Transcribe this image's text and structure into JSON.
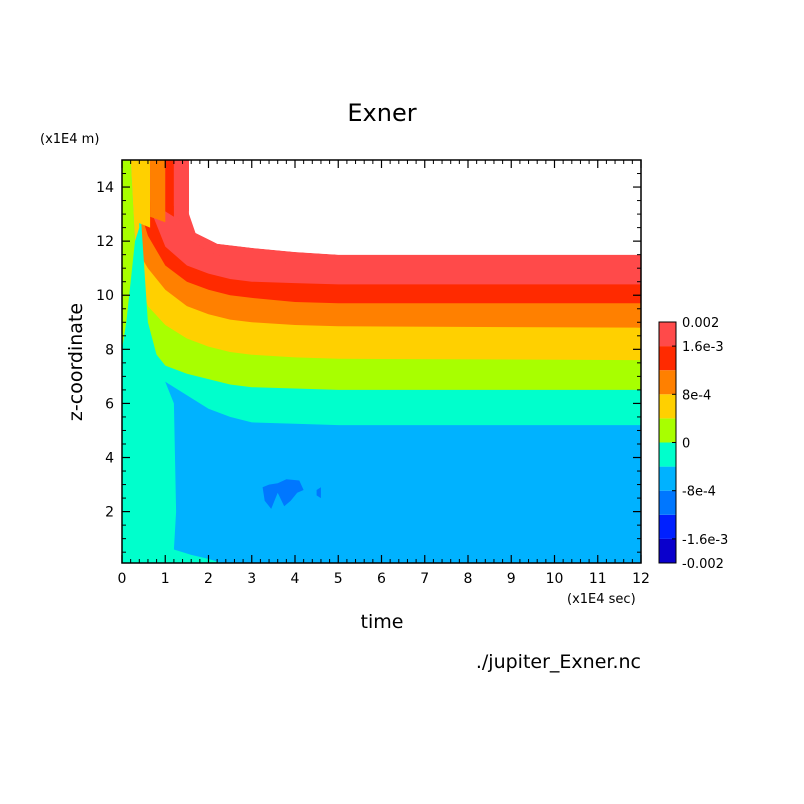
{
  "chart_data": {
    "type": "heatmap",
    "subtype": "filled-contour",
    "title": "Exner",
    "xlabel": "time",
    "ylabel": "z-coordinate",
    "x_unit": "(x1E4 sec)",
    "y_unit": "(x1E4 m)",
    "xlim": [
      0,
      12
    ],
    "ylim": [
      0.1,
      15
    ],
    "x_ticks": [
      "0",
      "1",
      "2",
      "3",
      "4",
      "5",
      "6",
      "7",
      "8",
      "9",
      "10",
      "11",
      "12"
    ],
    "y_ticks": [
      "2",
      "4",
      "6",
      "8",
      "10",
      "12",
      "14"
    ],
    "source_file": "./jupiter_Exner.nc",
    "colorbar": {
      "levels": [
        -0.002,
        -0.0016,
        -0.0012,
        -0.0008,
        -0.0004,
        0,
        0.0004,
        0.0008,
        0.0012,
        0.0016,
        0.002
      ],
      "colors": [
        "#0a00cc",
        "#0020ff",
        "#0077ff",
        "#00b2ff",
        "#00ffcc",
        "#a8ff00",
        "#ffd000",
        "#ff8000",
        "#ff2a00",
        "#ff4a4a"
      ],
      "tick_labels": [
        "0.002",
        "1.6e-3",
        "8e-4",
        "0",
        "-8e-4",
        "-1.6e-3",
        "-0.002"
      ],
      "tick_values": [
        0.002,
        0.0016,
        0.0008,
        0,
        -0.0008,
        -0.0016,
        -0.002
      ]
    },
    "steady_state_band_tops": [
      {
        "band": "-8e-4 to -4e-4",
        "z_top": 5.2
      },
      {
        "band": "-4e-4 to 0",
        "z_top": 6.5
      },
      {
        "band": "0 to 4e-4",
        "z_top": 7.6
      },
      {
        "band": "4e-4 to 8e-4",
        "z_top": 8.8
      },
      {
        "band": "8e-4 to 1.2e-3",
        "z_top": 9.7
      },
      {
        "band": "1.2e-3 to 1.6e-3",
        "z_top": 10.4
      },
      {
        "band": "1.6e-3 to 2e-3",
        "z_top": 11.1
      }
    ]
  }
}
